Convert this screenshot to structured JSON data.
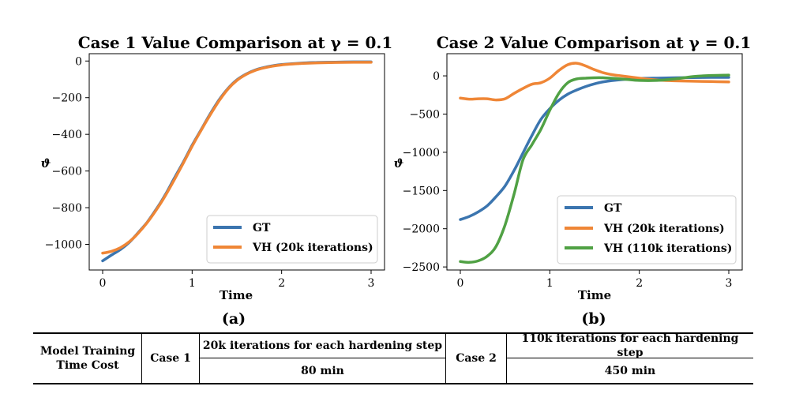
{
  "chart_data": [
    {
      "type": "line",
      "title": "Case 1 Value Comparison at γ = 0.1",
      "xlabel": "Time",
      "ylabel": "ϑ",
      "xlim": [
        -0.15,
        3.15
      ],
      "ylim": [
        -1140,
        40
      ],
      "xticks": [
        0,
        1,
        2,
        3
      ],
      "yticks": [
        0,
        -200,
        -400,
        -600,
        -800,
        -1000
      ],
      "ytick_labels": [
        "0",
        "−200",
        "−400",
        "−600",
        "−800",
        "−1000"
      ],
      "legend_position": "lower-right",
      "panel_label": "(a)",
      "series": [
        {
          "name": "GT",
          "color": "#3b75af",
          "x": [
            0,
            0.1,
            0.2,
            0.3,
            0.4,
            0.5,
            0.6,
            0.7,
            0.8,
            0.9,
            1.0,
            1.1,
            1.2,
            1.3,
            1.4,
            1.5,
            1.6,
            1.7,
            1.8,
            1.9,
            2.0,
            2.2,
            2.4,
            2.6,
            2.8,
            3.0
          ],
          "values": [
            -1090,
            -1058,
            -1028,
            -988,
            -935,
            -878,
            -808,
            -730,
            -640,
            -553,
            -460,
            -375,
            -290,
            -213,
            -150,
            -103,
            -72,
            -50,
            -36,
            -26,
            -19,
            -12,
            -8,
            -6,
            -5,
            -5
          ]
        },
        {
          "name": "VH (20k iterations)",
          "color": "#ef8636",
          "x": [
            0,
            0.1,
            0.2,
            0.3,
            0.4,
            0.5,
            0.6,
            0.7,
            0.8,
            0.9,
            1.0,
            1.1,
            1.2,
            1.3,
            1.4,
            1.5,
            1.6,
            1.7,
            1.8,
            1.9,
            2.0,
            2.2,
            2.4,
            2.6,
            2.8,
            3.0
          ],
          "values": [
            -1048,
            -1038,
            -1018,
            -985,
            -938,
            -880,
            -812,
            -735,
            -648,
            -558,
            -465,
            -378,
            -295,
            -218,
            -153,
            -106,
            -74,
            -52,
            -38,
            -28,
            -21,
            -14,
            -10,
            -8,
            -7,
            -7
          ]
        }
      ]
    },
    {
      "type": "line",
      "title": "Case 2 Value Comparison at γ = 0.1",
      "xlabel": "Time",
      "ylabel": "ϑ",
      "xlim": [
        -0.15,
        3.15
      ],
      "ylim": [
        -2540,
        290
      ],
      "xticks": [
        0,
        1,
        2,
        3
      ],
      "yticks": [
        0,
        -500,
        -1000,
        -1500,
        -2000,
        -2500
      ],
      "ytick_labels": [
        "0",
        "−500",
        "−1000",
        "−1500",
        "−2000",
        "−2500"
      ],
      "legend_position": "lower-right",
      "panel_label": "(b)",
      "series": [
        {
          "name": "GT",
          "color": "#3b75af",
          "x": [
            0,
            0.1,
            0.2,
            0.3,
            0.4,
            0.5,
            0.6,
            0.7,
            0.8,
            0.9,
            1.0,
            1.1,
            1.2,
            1.3,
            1.4,
            1.5,
            1.6,
            1.8,
            2.0,
            2.2,
            2.4,
            2.6,
            2.8,
            3.0
          ],
          "values": [
            -1880,
            -1840,
            -1780,
            -1700,
            -1580,
            -1440,
            -1240,
            -1010,
            -780,
            -570,
            -430,
            -320,
            -240,
            -185,
            -140,
            -105,
            -78,
            -50,
            -35,
            -30,
            -25,
            -22,
            -20,
            -20
          ]
        },
        {
          "name": "VH (20k iterations)",
          "color": "#ef8636",
          "x": [
            0,
            0.1,
            0.2,
            0.3,
            0.4,
            0.5,
            0.6,
            0.7,
            0.8,
            0.9,
            1.0,
            1.1,
            1.2,
            1.3,
            1.4,
            1.5,
            1.6,
            1.7,
            1.8,
            2.0,
            2.2,
            2.4,
            2.6,
            2.8,
            3.0
          ],
          "values": [
            -290,
            -305,
            -300,
            -300,
            -315,
            -300,
            -230,
            -165,
            -110,
            -90,
            -30,
            70,
            145,
            165,
            130,
            80,
            40,
            15,
            0,
            -30,
            -55,
            -65,
            -70,
            -75,
            -80
          ]
        },
        {
          "name": "VH (110k iterations)",
          "color": "#50a144",
          "x": [
            0,
            0.1,
            0.2,
            0.3,
            0.4,
            0.5,
            0.6,
            0.7,
            0.8,
            0.9,
            1.0,
            1.1,
            1.2,
            1.3,
            1.4,
            1.5,
            1.6,
            1.8,
            2.0,
            2.2,
            2.4,
            2.6,
            2.8,
            3.0
          ],
          "values": [
            -2430,
            -2440,
            -2420,
            -2360,
            -2230,
            -1950,
            -1550,
            -1100,
            -900,
            -700,
            -450,
            -230,
            -90,
            -40,
            -30,
            -25,
            -25,
            -40,
            -60,
            -60,
            -40,
            -10,
            5,
            10
          ]
        }
      ]
    }
  ],
  "table": {
    "header_label": "Model Training Time Cost",
    "case1_label": "Case 1",
    "case1_iterations": "20k iterations for each hardening step",
    "case1_time": "80 min",
    "case2_label": "Case 2",
    "case2_iterations": "110k iterations for each hardening step",
    "case2_time": "450 min"
  }
}
